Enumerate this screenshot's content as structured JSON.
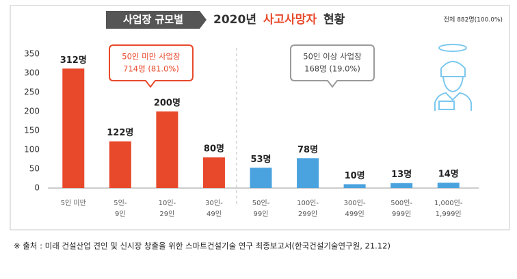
{
  "chart_data": {
    "type": "bar",
    "title_tag": "사업장 규모별",
    "title_parts": [
      "2020년",
      "사고사망자",
      "현황"
    ],
    "total": "전체 882명(100.0%)",
    "categories": [
      "5인 미만",
      "5인-\n9인",
      "10인-\n29인",
      "30인-\n49인",
      "50인-\n99인",
      "100인-\n299인",
      "300인-\n499인",
      "500인-\n999인",
      "1,000인-\n1,999인"
    ],
    "values": [
      312,
      122,
      200,
      80,
      53,
      78,
      10,
      13,
      14
    ],
    "value_labels": [
      "312명",
      "122명",
      "200명",
      "80명",
      "53명",
      "78명",
      "10명",
      "13명",
      "14명"
    ],
    "colors": [
      "#e8492b",
      "#e8492b",
      "#e8492b",
      "#e8492b",
      "#4aa3df",
      "#4aa3df",
      "#4aa3df",
      "#4aa3df",
      "#4aa3df"
    ],
    "ylim": [
      0,
      350
    ],
    "yticks": [
      0,
      50,
      100,
      150,
      200,
      250,
      300,
      350
    ],
    "grid": false,
    "annotations": [
      {
        "lines": [
          "50인 미만 사업장",
          "714명 (81.0%)"
        ],
        "color": "#e8492b"
      },
      {
        "lines": [
          "50인 이상 사업장",
          "168명 (19.0%)"
        ],
        "color": "#9a9a9a"
      }
    ],
    "source": "※ 출처 : 미래 건설산업 견인 및 신시장 창출을 위한 스마트건설기술 연구 최종보고서(한국건설기술연구원, 21.12)"
  }
}
